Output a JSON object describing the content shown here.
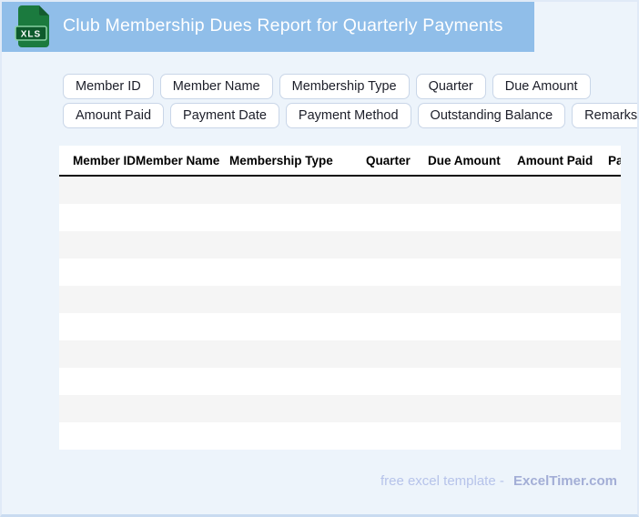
{
  "colors": {
    "page_background": "#edf4fb",
    "title_band": "#90bee9",
    "page_border_bottom": "#c9dbf0",
    "chip_border": "#c9d6e8",
    "row_stripe": "#f5f5f5",
    "header_rule": "#0d0d0d",
    "icon_green": "#1b7a3e",
    "icon_badge_green": "#0d5a2c",
    "icon_badge_border": "#86cfa2",
    "footer_text": "#b6c3ea",
    "footer_brand": "#a3aed6"
  },
  "header": {
    "title": "Club Membership Dues Report for Quarterly Payments",
    "icon": {
      "label": "XLS"
    }
  },
  "chips": {
    "row1": [
      "Member ID",
      "Member Name",
      "Membership Type",
      "Quarter",
      "Due Amount"
    ],
    "row2": [
      "Amount Paid",
      "Payment Date",
      "Payment Method",
      "Outstanding Balance",
      "Remarks"
    ]
  },
  "table": {
    "columns": [
      "Member ID",
      "Member Name",
      "Membership Type",
      "Quarter",
      "Due Amount",
      "Amount Paid",
      "Payment Date"
    ],
    "row_count": 10,
    "rows": []
  },
  "footer": {
    "tagline": "free excel template -",
    "brand": "ExcelTimer.com"
  }
}
